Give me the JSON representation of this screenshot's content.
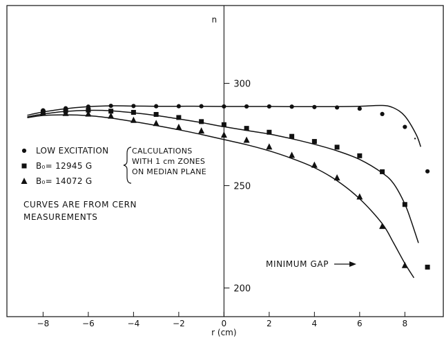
{
  "chart_data": {
    "type": "scatter",
    "title": "",
    "xlabel": "r (cm)",
    "ylabel": "n",
    "xlim": [
      -9.6,
      9.7
    ],
    "ylim": [
      186,
      338
    ],
    "x_ticks": [
      -8,
      -6,
      -4,
      -2,
      0,
      2,
      4,
      6,
      8
    ],
    "y_ticks": [
      300,
      250,
      200
    ],
    "grid": false,
    "series": [
      {
        "name": "LOW EXCITATION",
        "marker": "circle",
        "x": [
          -8,
          -7,
          -6,
          -5,
          -4,
          -3,
          -2,
          -1,
          0,
          1,
          2,
          3,
          4,
          5,
          6,
          7,
          8,
          9
        ],
        "y": [
          286.8,
          287.8,
          288.6,
          289.0,
          288.9,
          288.8,
          288.8,
          288.8,
          288.7,
          288.7,
          288.7,
          288.6,
          288.4,
          288.2,
          287.6,
          285.0,
          278.7,
          257.0
        ]
      },
      {
        "name": "B0= 12945 G",
        "marker": "square",
        "x": [
          -8,
          -7,
          -6,
          -5,
          -4,
          -3,
          -2,
          -1,
          0,
          1,
          2,
          3,
          4,
          5,
          6,
          7,
          8,
          9
        ],
        "y": [
          285.9,
          286.6,
          286.9,
          286.4,
          285.8,
          284.8,
          283.3,
          281.3,
          279.8,
          278.0,
          276.1,
          274.1,
          271.6,
          268.8,
          264.6,
          256.8,
          240.8,
          210.2
        ]
      },
      {
        "name": "B0= 14072 G",
        "marker": "triangle",
        "x": [
          -8,
          -7,
          -6,
          -5,
          -4,
          -3,
          -2,
          -1,
          0,
          1,
          2,
          3,
          4,
          5,
          6,
          7,
          8
        ],
        "y": [
          285.6,
          285.4,
          285.1,
          284.1,
          282.0,
          280.5,
          278.6,
          276.8,
          274.8,
          272.3,
          269.0,
          264.9,
          260.1,
          253.9,
          244.6,
          230.2,
          211.1
        ]
      }
    ],
    "curves": [
      {
        "name": "low-excitation-curve",
        "x": [
          -8.7,
          -8,
          -7,
          -6,
          -5,
          -4,
          -3,
          -2,
          -1,
          0,
          1,
          2,
          3,
          4,
          5,
          6,
          7,
          7.5,
          8,
          8.5,
          8.7
        ],
        "y": [
          284.4,
          286.0,
          287.6,
          288.6,
          289.0,
          288.9,
          288.8,
          288.8,
          288.8,
          288.7,
          288.7,
          288.7,
          288.6,
          288.6,
          288.6,
          288.8,
          289.2,
          288.0,
          284.0,
          275.0,
          269.0
        ]
      },
      {
        "name": "b12945-curve",
        "x": [
          -8.7,
          -8,
          -7,
          -6,
          -5,
          -4,
          -3,
          -2,
          -1,
          0,
          1,
          2,
          3,
          4,
          5,
          6,
          7,
          7.5,
          8,
          8.3,
          8.6
        ],
        "y": [
          283.6,
          285.0,
          286.3,
          286.8,
          286.6,
          285.6,
          284.3,
          282.6,
          280.8,
          278.8,
          277.0,
          275.2,
          272.9,
          270.2,
          267.0,
          262.8,
          256.2,
          251.0,
          241.0,
          232.0,
          222.0
        ]
      },
      {
        "name": "b14072-curve",
        "x": [
          -8.7,
          -8,
          -7,
          -6,
          -5,
          -4,
          -3,
          -2,
          -1,
          0,
          1,
          2,
          3,
          4,
          5,
          6,
          7,
          7.5,
          8,
          8.4
        ],
        "y": [
          283.2,
          284.3,
          284.6,
          284.2,
          283.0,
          281.3,
          279.4,
          277.3,
          275.0,
          272.5,
          270.0,
          267.0,
          263.3,
          258.8,
          252.4,
          243.6,
          231.4,
          222.0,
          212.0,
          205.0
        ]
      }
    ],
    "legend": [
      {
        "marker": "circle",
        "label": "LOW EXCITATION"
      },
      {
        "marker": "square",
        "label": "B₀= 12945 G"
      },
      {
        "marker": "triangle",
        "label": "B₀= 14072 G"
      }
    ],
    "legend_bracket_text": [
      "CALCULATIONS",
      "WITH 1 cm ZONES",
      "ON MEDIAN PLANE"
    ],
    "note_lines": [
      "CURVES ARE FROM CERN",
      "MEASUREMENTS"
    ],
    "annotation": "MINIMUM GAP",
    "colors": {
      "ink": "#111111",
      "background": "#ffffff"
    }
  }
}
